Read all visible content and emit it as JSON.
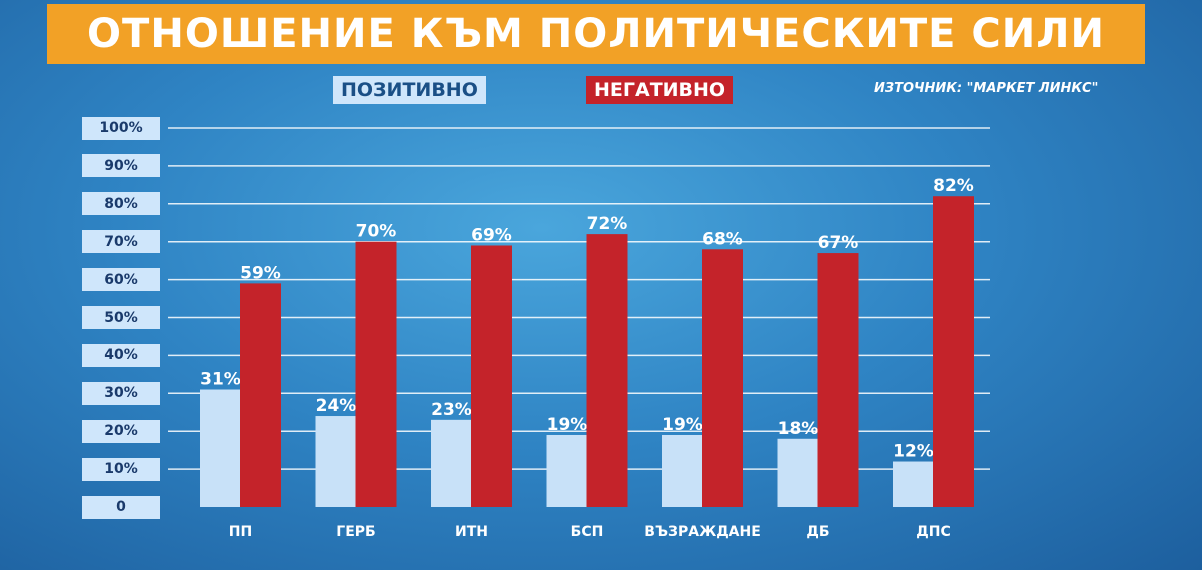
{
  "header": {
    "title": "ОТНОШЕНИЕ КЪМ ПОЛИТИЧЕСКИТЕ СИЛИ"
  },
  "legend": {
    "positive": "ПОЗИТИВНО",
    "negative": "НЕГАТИВНО"
  },
  "source": "ИЗТОЧНИК: \"МАРКЕТ ЛИНКС\"",
  "colors": {
    "positive": "#c8e1f8",
    "negative": "#c4232a",
    "banner": "#f2a126"
  },
  "chart_data": {
    "type": "bar",
    "title": "ОТНОШЕНИЕ КЪМ ПОЛИТИЧЕСКИТЕ СИЛИ",
    "categories": [
      "ПП",
      "ГЕРБ",
      "ИТН",
      "БСП",
      "ВЪЗРАЖДАНЕ",
      "ДБ",
      "ДПС"
    ],
    "series": [
      {
        "name": "ПОЗИТИВНО",
        "values": [
          31,
          24,
          23,
          19,
          19,
          18,
          12
        ]
      },
      {
        "name": "НЕГАТИВНО",
        "values": [
          59,
          70,
          69,
          72,
          68,
          67,
          82
        ]
      }
    ],
    "value_labels": {
      "ПОЗИТИВНО": [
        "31%",
        "24%",
        "23%",
        "19%",
        "19%",
        "18%",
        "12%"
      ],
      "НЕГАТИВНО": [
        "59%",
        "70%",
        "69%",
        "72%",
        "68%",
        "67%",
        "82%"
      ]
    },
    "yticks": [
      "0",
      "10%",
      "20%",
      "30%",
      "40%",
      "50%",
      "60%",
      "70%",
      "80%",
      "90%",
      "100%"
    ],
    "ylim": [
      0,
      100
    ],
    "grid": true,
    "legend_position": "top"
  }
}
